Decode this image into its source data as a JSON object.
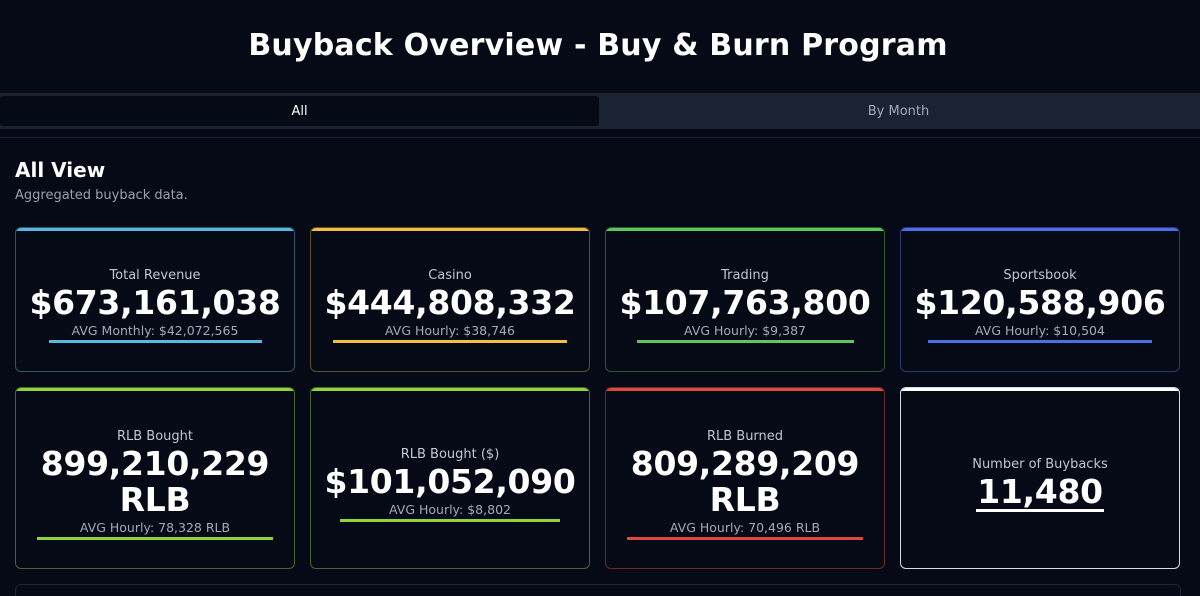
{
  "header": {
    "title": "Buyback Overview - Buy & Burn Program"
  },
  "tabs": [
    {
      "label": "All",
      "active": true
    },
    {
      "label": "By Month",
      "active": false
    }
  ],
  "section": {
    "title": "All View",
    "description": "Aggregated buyback data."
  },
  "cards": {
    "total_revenue": {
      "label": "Total Revenue",
      "value": "$673,161,038",
      "avg": "AVG Monthly: $42,072,565",
      "color": "#58b8e0"
    },
    "casino": {
      "label": "Casino",
      "value": "$444,808,332",
      "avg": "AVG Hourly: $38,746",
      "color": "#f0c040"
    },
    "trading": {
      "label": "Trading",
      "value": "$107,763,800",
      "avg": "AVG Hourly: $9,387",
      "color": "#5cc85c"
    },
    "sportsbook": {
      "label": "Sportsbook",
      "value": "$120,588,906",
      "avg": "AVG Hourly: $10,504",
      "color": "#4a6fe8"
    },
    "rlb_bought": {
      "label": "RLB Bought",
      "value_line1": "899,210,229",
      "value_line2": "RLB",
      "avg": "AVG Hourly: 78,328 RLB",
      "color": "#8fd43c"
    },
    "rlb_bought_usd": {
      "label": "RLB Bought ($)",
      "value": "$101,052,090",
      "avg": "AVG Hourly: $8,802",
      "color": "#8fd43c"
    },
    "rlb_burned": {
      "label": "RLB Burned",
      "value_line1": "809,289,209",
      "value_line2": "RLB",
      "avg": "AVG Hourly: 70,496 RLB",
      "color": "#e0483c"
    },
    "buybacks": {
      "label": "Number of Buybacks",
      "value": "11,480",
      "color": "#ffffff"
    }
  }
}
